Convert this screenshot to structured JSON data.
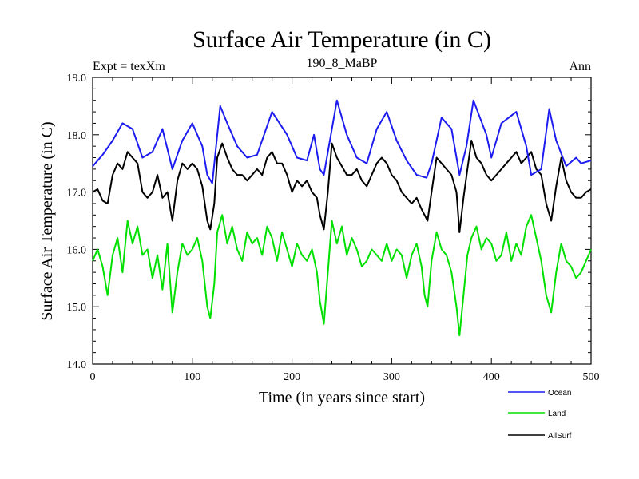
{
  "chart_data": {
    "type": "line",
    "title": "Surface Air Temperature (in C)",
    "subtitle": "190_8_MaBP",
    "left_label": "Expt = texXm",
    "right_label": "Ann",
    "xlabel": "Time (in years since start)",
    "ylabel": "Surface Air Temperature (in C)",
    "xlim": [
      0,
      500
    ],
    "ylim": [
      14.0,
      19.0
    ],
    "x_ticks": [
      0,
      100,
      200,
      300,
      400,
      500
    ],
    "x_tick_labels": [
      "0",
      "100",
      "200",
      "300",
      "400",
      "500"
    ],
    "y_ticks": [
      14.0,
      15.0,
      16.0,
      17.0,
      18.0,
      19.0
    ],
    "y_tick_labels": [
      "14.0",
      "15.0",
      "16.0",
      "17.0",
      "18.0",
      "19.0"
    ],
    "grid": false,
    "legend_position": "bottom-right",
    "series": [
      {
        "name": "Ocean",
        "color": "#1c1cf0",
        "x": [
          0,
          10,
          20,
          30,
          40,
          50,
          60,
          70,
          80,
          90,
          100,
          110,
          115,
          120,
          128,
          135,
          145,
          155,
          165,
          180,
          195,
          205,
          215,
          222,
          228,
          232,
          245,
          255,
          265,
          275,
          285,
          295,
          305,
          315,
          325,
          335,
          340,
          350,
          360,
          368,
          375,
          382,
          395,
          400,
          410,
          425,
          435,
          440,
          450,
          458,
          465,
          475,
          485,
          490,
          500
        ],
        "values": [
          17.45,
          17.65,
          17.9,
          18.2,
          18.1,
          17.6,
          17.7,
          18.1,
          17.4,
          17.9,
          18.2,
          17.8,
          17.3,
          17.15,
          18.5,
          18.2,
          17.8,
          17.6,
          17.65,
          18.4,
          18.0,
          17.6,
          17.55,
          18.0,
          17.4,
          17.3,
          18.6,
          18.0,
          17.6,
          17.5,
          18.1,
          18.4,
          17.9,
          17.55,
          17.3,
          17.25,
          17.5,
          18.3,
          18.1,
          17.3,
          17.8,
          18.6,
          18.0,
          17.6,
          18.2,
          18.4,
          17.8,
          17.3,
          17.4,
          18.45,
          17.9,
          17.45,
          17.6,
          17.5,
          17.55
        ]
      },
      {
        "name": "Land",
        "color": "#00e000",
        "x": [
          0,
          5,
          10,
          15,
          20,
          25,
          30,
          35,
          40,
          45,
          50,
          55,
          60,
          65,
          70,
          75,
          80,
          85,
          90,
          95,
          100,
          105,
          110,
          115,
          118,
          122,
          125,
          130,
          135,
          140,
          145,
          150,
          155,
          160,
          165,
          170,
          175,
          180,
          185,
          190,
          195,
          200,
          205,
          210,
          215,
          220,
          225,
          228,
          232,
          236,
          240,
          245,
          250,
          255,
          260,
          265,
          270,
          275,
          280,
          285,
          290,
          295,
          300,
          305,
          310,
          315,
          320,
          325,
          330,
          333,
          336,
          340,
          345,
          350,
          355,
          360,
          365,
          368,
          372,
          376,
          380,
          385,
          390,
          395,
          400,
          405,
          410,
          415,
          420,
          425,
          430,
          435,
          440,
          445,
          450,
          455,
          460,
          465,
          470,
          475,
          480,
          485,
          490,
          495,
          500
        ],
        "values": [
          15.8,
          16.0,
          15.7,
          15.2,
          15.9,
          16.2,
          15.6,
          16.5,
          16.1,
          16.4,
          15.9,
          16.0,
          15.5,
          15.9,
          15.3,
          16.1,
          14.9,
          15.6,
          16.1,
          15.9,
          16.0,
          16.2,
          15.8,
          15.0,
          14.8,
          15.4,
          16.3,
          16.6,
          16.1,
          16.4,
          16.0,
          15.8,
          16.3,
          16.1,
          16.2,
          15.9,
          16.4,
          16.2,
          15.8,
          16.3,
          16.0,
          15.7,
          16.1,
          15.9,
          15.8,
          16.0,
          15.6,
          15.1,
          14.7,
          15.6,
          16.5,
          16.1,
          16.4,
          15.9,
          16.2,
          16.0,
          15.7,
          15.8,
          16.0,
          15.9,
          15.8,
          16.1,
          15.8,
          16.0,
          15.9,
          15.5,
          15.9,
          16.1,
          15.7,
          15.2,
          15.0,
          15.8,
          16.3,
          16.0,
          15.9,
          15.6,
          15.0,
          14.5,
          15.2,
          15.9,
          16.2,
          16.4,
          16.0,
          16.2,
          16.1,
          15.8,
          15.9,
          16.3,
          15.8,
          16.1,
          15.9,
          16.4,
          16.6,
          16.2,
          15.8,
          15.2,
          14.9,
          15.6,
          16.1,
          15.8,
          15.7,
          15.5,
          15.6,
          15.8,
          16.0
        ]
      },
      {
        "name": "AllSurf",
        "color": "#000000",
        "x": [
          0,
          5,
          10,
          15,
          20,
          25,
          30,
          35,
          40,
          45,
          50,
          55,
          60,
          65,
          70,
          75,
          80,
          85,
          90,
          95,
          100,
          105,
          110,
          115,
          118,
          122,
          125,
          130,
          135,
          140,
          145,
          150,
          155,
          160,
          165,
          170,
          175,
          180,
          185,
          190,
          195,
          200,
          205,
          210,
          215,
          220,
          225,
          228,
          232,
          236,
          240,
          245,
          250,
          255,
          260,
          265,
          270,
          275,
          280,
          285,
          290,
          295,
          300,
          305,
          310,
          315,
          320,
          325,
          330,
          333,
          336,
          340,
          345,
          350,
          355,
          360,
          365,
          368,
          372,
          376,
          380,
          385,
          390,
          395,
          400,
          405,
          410,
          415,
          420,
          425,
          430,
          435,
          440,
          445,
          450,
          455,
          460,
          465,
          470,
          475,
          480,
          485,
          490,
          495,
          500
        ],
        "values": [
          17.0,
          17.05,
          16.85,
          16.8,
          17.3,
          17.5,
          17.4,
          17.7,
          17.6,
          17.5,
          17.0,
          16.9,
          17.0,
          17.3,
          16.9,
          17.0,
          16.5,
          17.2,
          17.5,
          17.4,
          17.5,
          17.4,
          17.1,
          16.5,
          16.35,
          16.8,
          17.6,
          17.85,
          17.6,
          17.4,
          17.3,
          17.3,
          17.2,
          17.3,
          17.4,
          17.3,
          17.6,
          17.7,
          17.5,
          17.5,
          17.3,
          17.0,
          17.2,
          17.1,
          17.2,
          17.0,
          16.9,
          16.6,
          16.35,
          17.0,
          17.85,
          17.6,
          17.45,
          17.3,
          17.3,
          17.4,
          17.2,
          17.1,
          17.3,
          17.5,
          17.6,
          17.5,
          17.3,
          17.2,
          17.0,
          16.9,
          16.8,
          16.9,
          16.7,
          16.6,
          16.5,
          17.0,
          17.6,
          17.5,
          17.4,
          17.3,
          17.0,
          16.3,
          16.9,
          17.4,
          17.9,
          17.6,
          17.5,
          17.3,
          17.2,
          17.3,
          17.4,
          17.5,
          17.6,
          17.7,
          17.5,
          17.6,
          17.7,
          17.4,
          17.3,
          16.8,
          16.5,
          17.1,
          17.6,
          17.2,
          17.0,
          16.9,
          16.9,
          17.0,
          17.05
        ]
      }
    ]
  }
}
